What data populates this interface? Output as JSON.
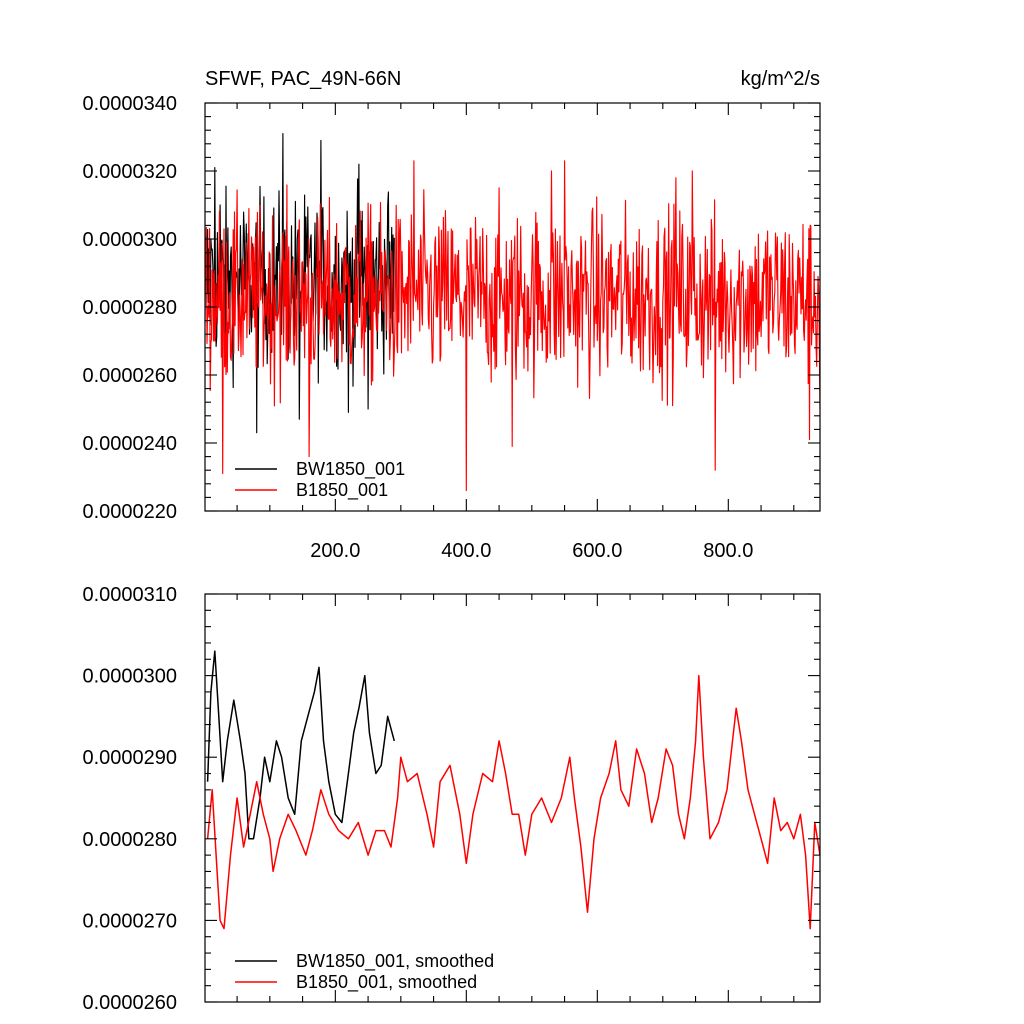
{
  "chart_data": [
    {
      "type": "line",
      "title": "SFWF, PAC_49N-66N",
      "units": "kg/m^2/s",
      "xlim": [
        1,
        940
      ],
      "ylim": [
        2.2e-05,
        3.4e-05
      ],
      "xticks": [
        200,
        400,
        600,
        800
      ],
      "xtick_labels": [
        "200.0",
        "400.0",
        "600.0",
        "800.0"
      ],
      "yticks": [
        2.2e-05,
        2.4e-05,
        2.6e-05,
        2.8e-05,
        3e-05,
        3.2e-05,
        3.4e-05
      ],
      "ytick_labels": [
        "0.0000220",
        "0.0000240",
        "0.0000260",
        "0.0000280",
        "0.0000300",
        "0.0000320",
        "0.0000340"
      ],
      "grid": false,
      "legend_position": "bottom-left",
      "series": [
        {
          "name": "BW1850_001",
          "color": "#000000",
          "x_range": [
            1,
            290
          ],
          "mean": 2.88e-05,
          "spread": 1.6e-06,
          "max": 3.31e-05,
          "min": 2.43e-05,
          "peaks": [
            [
              10,
              3e-05
            ],
            [
              16,
              3.21e-05
            ],
            [
              24,
              3.1e-05
            ],
            [
              120,
              3.31e-05
            ],
            [
              178,
              3.29e-05
            ],
            [
              236,
              3.22e-05
            ],
            [
              280,
              3.1e-05
            ]
          ],
          "troughs": [
            [
              80,
              2.43e-05
            ],
            [
              145,
              2.47e-05
            ],
            [
              220,
              2.49e-05
            ],
            [
              250,
              2.5e-05
            ]
          ]
        },
        {
          "name": "B1850_001",
          "color": "#ff0000",
          "x_range": [
            1,
            940
          ],
          "mean": 2.83e-05,
          "spread": 1.7e-06,
          "max": 3.23e-05,
          "min": 2.26e-05,
          "peaks": [
            [
              320,
              3.23e-05
            ],
            [
              530,
              3.2e-05
            ],
            [
              550,
              3.23e-05
            ],
            [
              745,
              3.2e-05
            ],
            [
              720,
              3.18e-05
            ]
          ],
          "troughs": [
            [
              28,
              2.31e-05
            ],
            [
              160,
              2.36e-05
            ],
            [
              400,
              2.26e-05
            ],
            [
              470,
              2.39e-05
            ],
            [
              780,
              2.32e-05
            ],
            [
              924,
              2.41e-05
            ],
            [
              940,
              2.5e-05
            ]
          ]
        }
      ]
    },
    {
      "type": "line",
      "title": "",
      "xlim": [
        1,
        940
      ],
      "ylim": [
        2.6e-05,
        3.1e-05
      ],
      "xticks": [
        200,
        400,
        600,
        800
      ],
      "yticks": [
        2.6e-05,
        2.7e-05,
        2.8e-05,
        2.9e-05,
        3e-05,
        3.1e-05
      ],
      "ytick_labels": [
        "0.0000260",
        "0.0000270",
        "0.0000280",
        "0.0000290",
        "0.0000300",
        "0.0000310"
      ],
      "grid": false,
      "legend_position": "bottom-left",
      "series": [
        {
          "name": "BW1850_001, smoothed",
          "color": "#000000",
          "points": [
            [
              5,
              2.87e-05
            ],
            [
              10,
              2.98e-05
            ],
            [
              16,
              3.03e-05
            ],
            [
              22,
              2.95e-05
            ],
            [
              28,
              2.87e-05
            ],
            [
              35,
              2.92e-05
            ],
            [
              45,
              2.97e-05
            ],
            [
              55,
              2.92e-05
            ],
            [
              62,
              2.88e-05
            ],
            [
              68,
              2.8e-05
            ],
            [
              75,
              2.8e-05
            ],
            [
              85,
              2.85e-05
            ],
            [
              92,
              2.9e-05
            ],
            [
              100,
              2.87e-05
            ],
            [
              110,
              2.92e-05
            ],
            [
              118,
              2.9e-05
            ],
            [
              128,
              2.85e-05
            ],
            [
              138,
              2.83e-05
            ],
            [
              148,
              2.92e-05
            ],
            [
              158,
              2.95e-05
            ],
            [
              168,
              2.98e-05
            ],
            [
              175,
              3.01e-05
            ],
            [
              182,
              2.92e-05
            ],
            [
              190,
              2.87e-05
            ],
            [
              200,
              2.83e-05
            ],
            [
              210,
              2.82e-05
            ],
            [
              220,
              2.88e-05
            ],
            [
              228,
              2.93e-05
            ],
            [
              236,
              2.96e-05
            ],
            [
              245,
              3e-05
            ],
            [
              252,
              2.93e-05
            ],
            [
              262,
              2.88e-05
            ],
            [
              270,
              2.89e-05
            ],
            [
              280,
              2.95e-05
            ],
            [
              290,
              2.92e-05
            ]
          ]
        },
        {
          "name": "B1850_001, smoothed",
          "color": "#ff0000",
          "points": [
            [
              5,
              2.8e-05
            ],
            [
              12,
              2.86e-05
            ],
            [
              18,
              2.78e-05
            ],
            [
              24,
              2.7e-05
            ],
            [
              30,
              2.69e-05
            ],
            [
              40,
              2.78e-05
            ],
            [
              50,
              2.85e-05
            ],
            [
              60,
              2.79e-05
            ],
            [
              70,
              2.83e-05
            ],
            [
              80,
              2.87e-05
            ],
            [
              90,
              2.83e-05
            ],
            [
              100,
              2.8e-05
            ],
            [
              105,
              2.76e-05
            ],
            [
              115,
              2.8e-05
            ],
            [
              128,
              2.83e-05
            ],
            [
              140,
              2.81e-05
            ],
            [
              155,
              2.78e-05
            ],
            [
              165,
              2.81e-05
            ],
            [
              178,
              2.86e-05
            ],
            [
              190,
              2.83e-05
            ],
            [
              205,
              2.81e-05
            ],
            [
              220,
              2.8e-05
            ],
            [
              235,
              2.82e-05
            ],
            [
              250,
              2.78e-05
            ],
            [
              262,
              2.81e-05
            ],
            [
              275,
              2.81e-05
            ],
            [
              285,
              2.79e-05
            ],
            [
              295,
              2.85e-05
            ],
            [
              300,
              2.9e-05
            ],
            [
              310,
              2.87e-05
            ],
            [
              325,
              2.88e-05
            ],
            [
              340,
              2.83e-05
            ],
            [
              350,
              2.79e-05
            ],
            [
              360,
              2.87e-05
            ],
            [
              375,
              2.89e-05
            ],
            [
              390,
              2.83e-05
            ],
            [
              400,
              2.77e-05
            ],
            [
              410,
              2.83e-05
            ],
            [
              425,
              2.88e-05
            ],
            [
              440,
              2.87e-05
            ],
            [
              450,
              2.92e-05
            ],
            [
              460,
              2.88e-05
            ],
            [
              470,
              2.83e-05
            ],
            [
              480,
              2.83e-05
            ],
            [
              490,
              2.78e-05
            ],
            [
              500,
              2.83e-05
            ],
            [
              515,
              2.85e-05
            ],
            [
              530,
              2.82e-05
            ],
            [
              545,
              2.85e-05
            ],
            [
              558,
              2.9e-05
            ],
            [
              565,
              2.85e-05
            ],
            [
              575,
              2.79e-05
            ],
            [
              585,
              2.71e-05
            ],
            [
              595,
              2.8e-05
            ],
            [
              605,
              2.85e-05
            ],
            [
              618,
              2.88e-05
            ],
            [
              628,
              2.92e-05
            ],
            [
              636,
              2.86e-05
            ],
            [
              648,
              2.84e-05
            ],
            [
              660,
              2.91e-05
            ],
            [
              672,
              2.88e-05
            ],
            [
              683,
              2.82e-05
            ],
            [
              693,
              2.85e-05
            ],
            [
              705,
              2.91e-05
            ],
            [
              715,
              2.89e-05
            ],
            [
              724,
              2.83e-05
            ],
            [
              733,
              2.8e-05
            ],
            [
              742,
              2.85e-05
            ],
            [
              750,
              2.92e-05
            ],
            [
              755,
              3e-05
            ],
            [
              762,
              2.9e-05
            ],
            [
              772,
              2.8e-05
            ],
            [
              785,
              2.82e-05
            ],
            [
              798,
              2.86e-05
            ],
            [
              812,
              2.96e-05
            ],
            [
              820,
              2.92e-05
            ],
            [
              830,
              2.86e-05
            ],
            [
              840,
              2.83e-05
            ],
            [
              850,
              2.8e-05
            ],
            [
              860,
              2.77e-05
            ],
            [
              870,
              2.85e-05
            ],
            [
              880,
              2.81e-05
            ],
            [
              890,
              2.82e-05
            ],
            [
              900,
              2.8e-05
            ],
            [
              910,
              2.83e-05
            ],
            [
              918,
              2.78e-05
            ],
            [
              925,
              2.69e-05
            ],
            [
              932,
              2.82e-05
            ],
            [
              940,
              2.78e-05
            ]
          ]
        }
      ]
    }
  ]
}
